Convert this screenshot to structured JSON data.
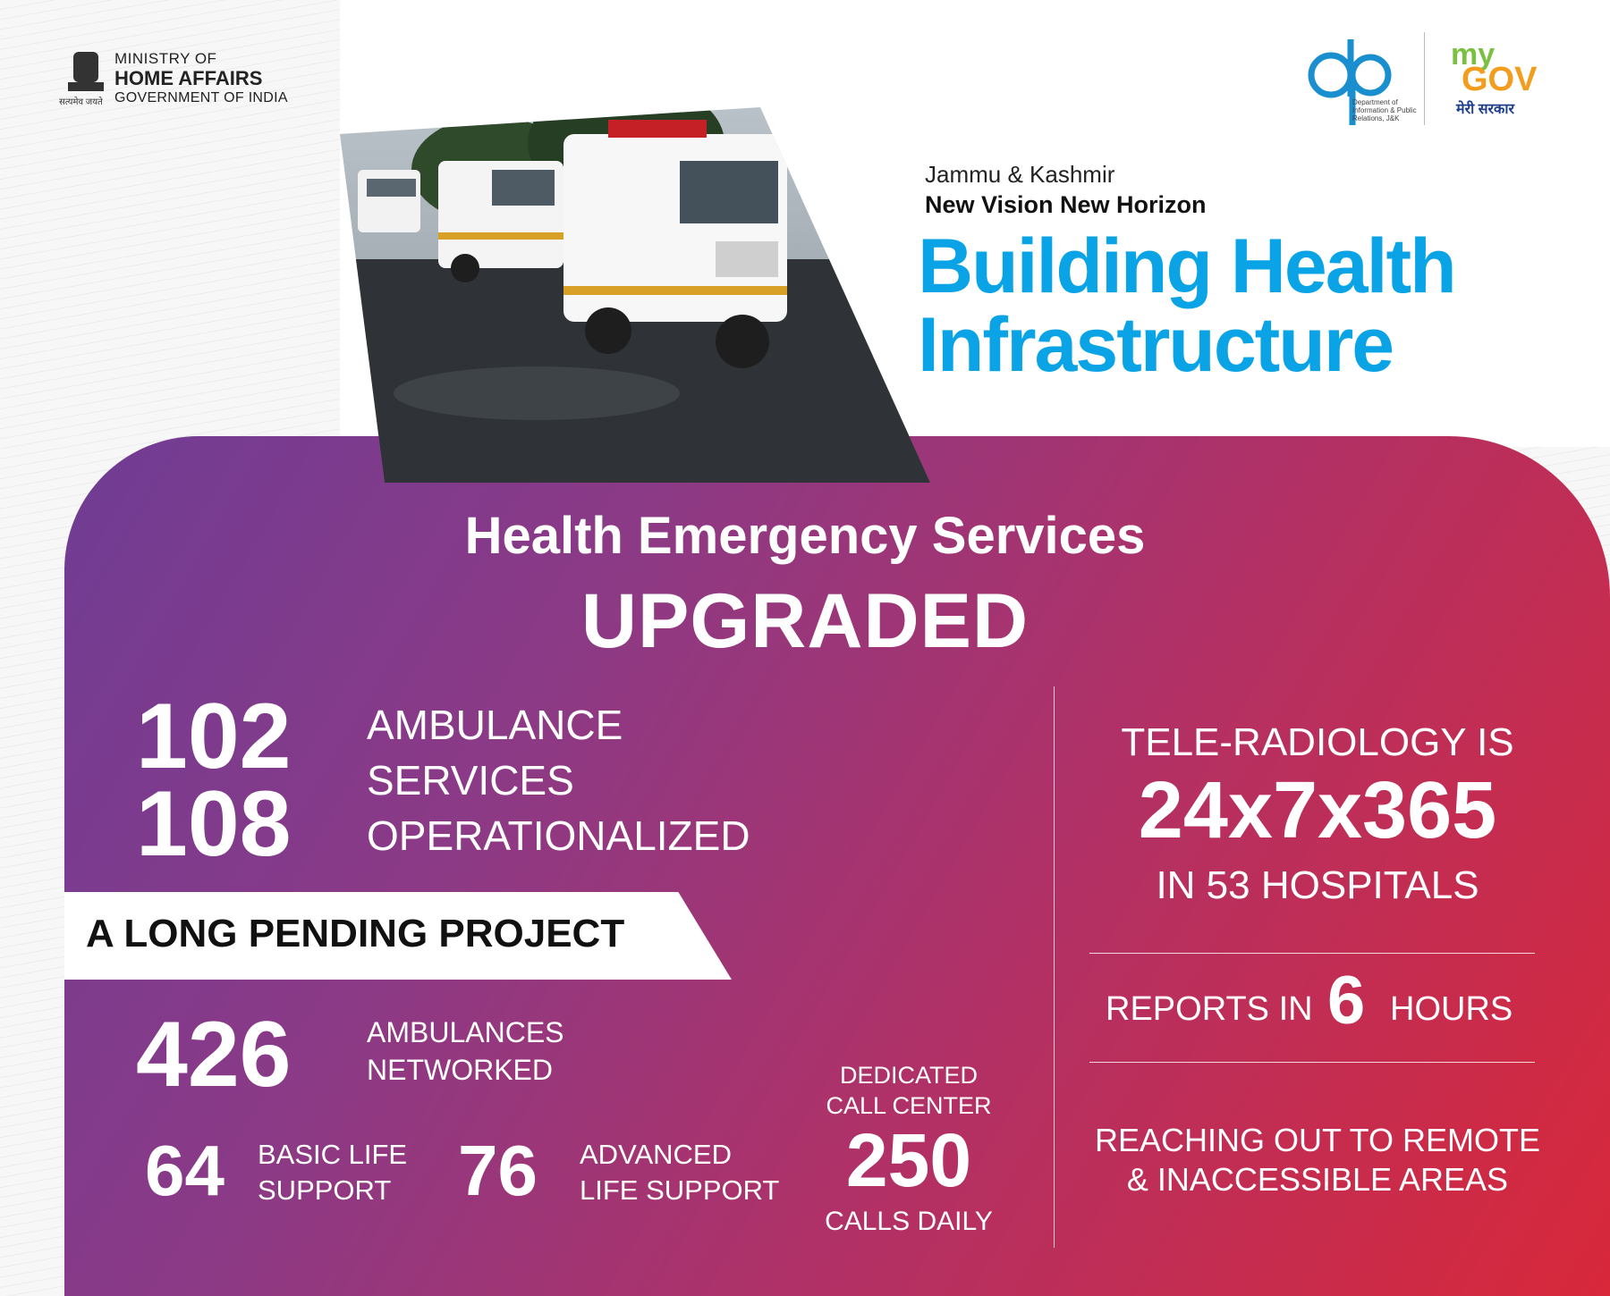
{
  "header": {
    "ministry_line1": "MINISTRY OF",
    "ministry_line2": "HOME AFFAIRS",
    "ministry_line3": "GOVERNMENT OF INDIA",
    "emblem_motto": "सत्यमेव जयते",
    "dip_text": "Department of Information & Public Relations, J&K",
    "mygov_my": "my",
    "mygov_gov": "GOV",
    "mygov_tagline": "मेरी सरकार"
  },
  "hero": {
    "region": "Jammu & Kashmir",
    "slogan": "New Vision New Horizon",
    "title_line1": "Building Health",
    "title_line2": "Infrastructure",
    "photo_subject": "ambulances"
  },
  "section": {
    "title": "Health Emergency Services",
    "subtitle": "UPGRADED"
  },
  "ambulance": {
    "num1": "102",
    "num2": "108",
    "text_line1": "AMBULANCE",
    "text_line2": "SERVICES",
    "text_line3": "OPERATIONALIZED"
  },
  "banner": {
    "text": "A LONG PENDING PROJECT"
  },
  "network": {
    "num": "426",
    "text_line1": "AMBULANCES",
    "text_line2": "NETWORKED"
  },
  "support": {
    "basic_num": "64",
    "basic_line1": "BASIC LIFE",
    "basic_line2": "SUPPORT",
    "advanced_num": "76",
    "advanced_line1": "ADVANCED",
    "advanced_line2": "LIFE SUPPORT"
  },
  "call_center": {
    "line1": "DEDICATED",
    "line2": "CALL CENTER",
    "num": "250",
    "calls": "CALLS DAILY"
  },
  "teleradiology": {
    "line1": "TELE-RADIOLOGY IS",
    "schedule": "24x7x365",
    "hospitals": "IN 53 HOSPITALS",
    "reports_prefix": "REPORTS IN",
    "reports_num": "6",
    "reports_suffix": "HOURS",
    "reach_line1": "REACHING OUT TO REMOTE",
    "reach_line2": "& INACCESSIBLE AREAS"
  },
  "colors": {
    "title_blue": "#0aa4e6",
    "panel_start": "#6f3c94",
    "panel_end": "#d8283a",
    "mygov_green": "#7ac143",
    "mygov_orange": "#f29d1e"
  }
}
